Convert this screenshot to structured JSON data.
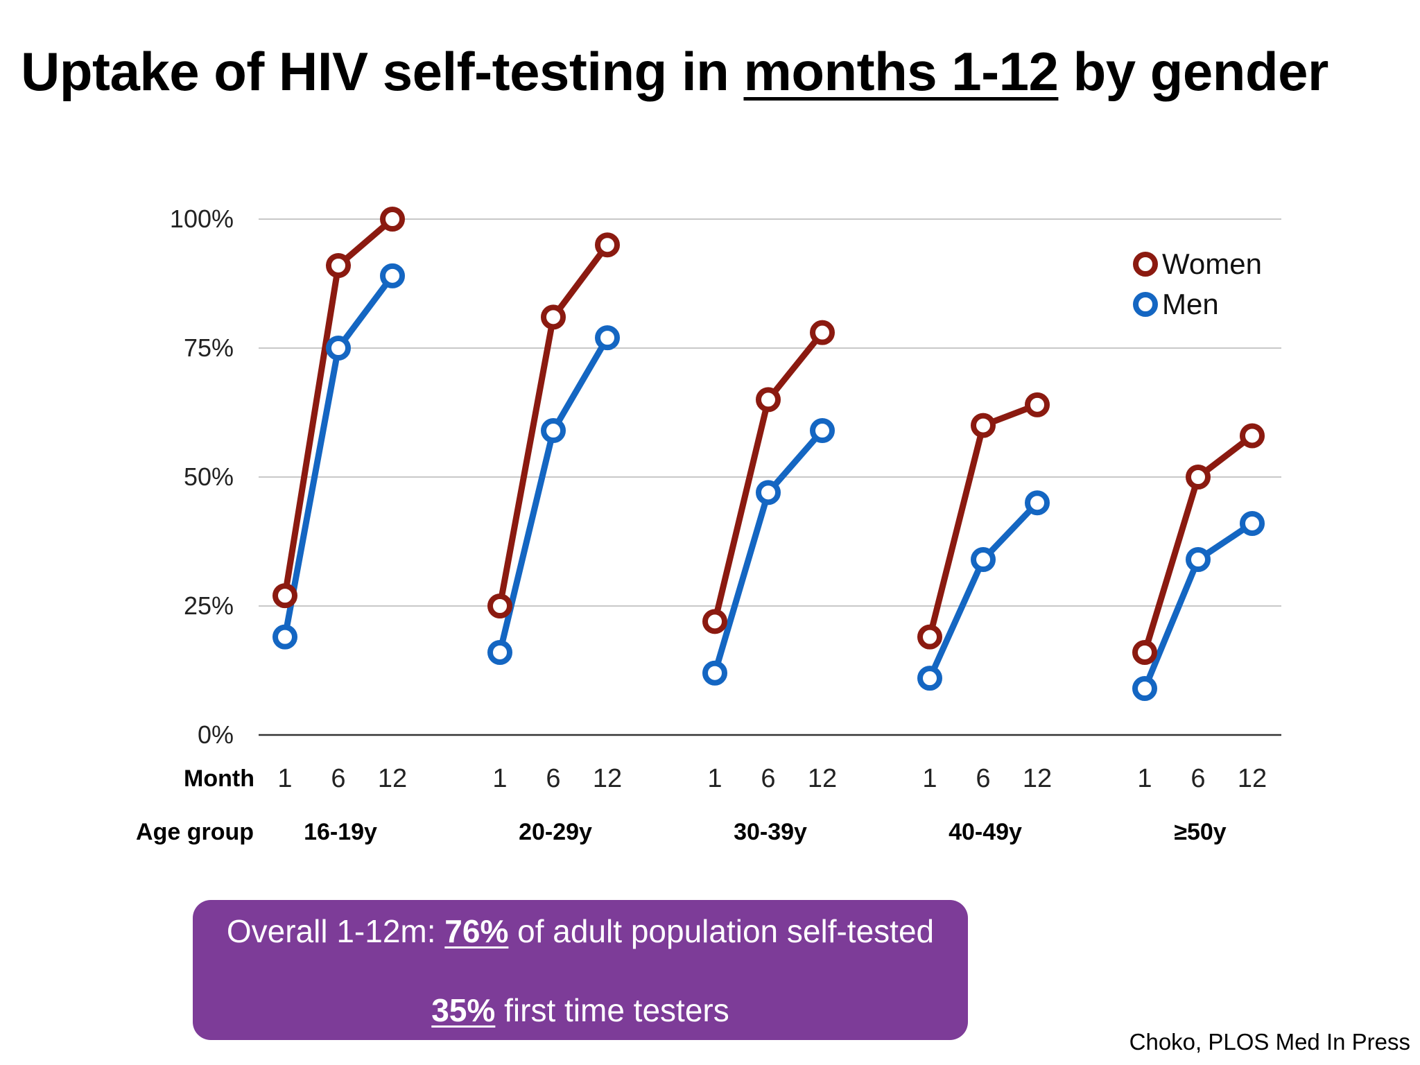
{
  "title": {
    "before": "Uptake of HIV self-testing in ",
    "underlined": "months 1-12",
    "after": " by gender"
  },
  "chart_data": {
    "type": "line",
    "title": "",
    "xlabel": "",
    "ylabel": "",
    "ylim": [
      0,
      100
    ],
    "y_ticks": [
      "0%",
      "25%",
      "50%",
      "75%",
      "100%"
    ],
    "y_tick_values": [
      0,
      25,
      50,
      75,
      100
    ],
    "grid": true,
    "legend_placement": "top-right",
    "month_row_label": "Month",
    "age_row_label": "Age group",
    "months": [
      "1",
      "6",
      "12"
    ],
    "groups": [
      "16-19y",
      "20-29y",
      "30-39y",
      "40-49y",
      "≥50y"
    ],
    "series": [
      {
        "name": "Women",
        "color": "#8b1a10",
        "values": [
          [
            27,
            91,
            100
          ],
          [
            25,
            81,
            95
          ],
          [
            22,
            65,
            78
          ],
          [
            19,
            60,
            64
          ],
          [
            16,
            50,
            58
          ]
        ]
      },
      {
        "name": "Men",
        "color": "#1466c2",
        "values": [
          [
            19,
            75,
            89
          ],
          [
            16,
            59,
            77
          ],
          [
            12,
            47,
            59
          ],
          [
            11,
            34,
            45
          ],
          [
            9,
            34,
            41
          ]
        ]
      }
    ]
  },
  "summary": {
    "line1_before": "Overall 1-12m: ",
    "line1_highlight": "76%",
    "line1_after": " of adult population self-tested",
    "line2_highlight": "35%",
    "line2_after": " first time testers"
  },
  "source": "Choko, PLOS Med In Press"
}
